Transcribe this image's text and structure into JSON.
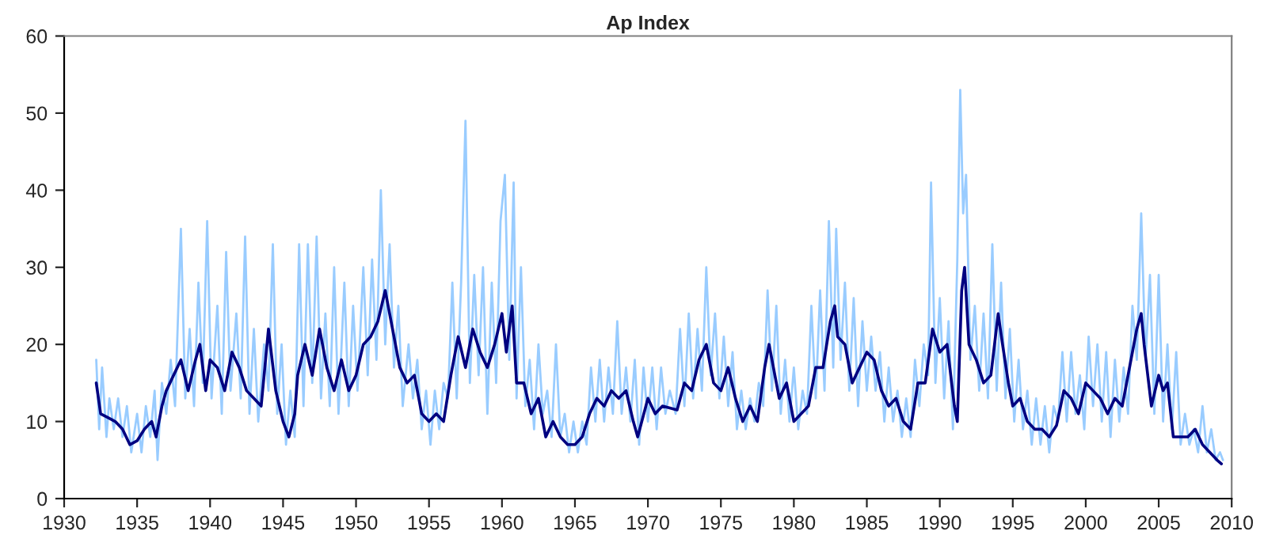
{
  "chart_data": {
    "type": "line",
    "title": "Ap Index",
    "xlim": [
      1930,
      2010
    ],
    "xticks": [
      1930,
      1935,
      1940,
      1945,
      1950,
      1955,
      1960,
      1965,
      1970,
      1975,
      1980,
      1985,
      1990,
      1995,
      2000,
      2005,
      2010
    ],
    "ylim": [
      0,
      60
    ],
    "yticks": [
      0,
      10,
      20,
      30,
      40,
      50,
      60
    ],
    "grid": false,
    "marker": "none",
    "line_style": "solid",
    "series": [
      {
        "color": "#99ccff",
        "x": [
          1932.2,
          1932.4,
          1932.6,
          1932.9,
          1933.1,
          1933.4,
          1933.7,
          1934,
          1934.3,
          1934.6,
          1935,
          1935.3,
          1935.6,
          1935.9,
          1936.2,
          1936.4,
          1936.7,
          1937,
          1937.3,
          1937.6,
          1938,
          1938.3,
          1938.6,
          1938.9,
          1939.2,
          1939.5,
          1939.8,
          1940.1,
          1940.5,
          1940.8,
          1941.1,
          1941.4,
          1941.8,
          1942.1,
          1942.4,
          1942.7,
          1943,
          1943.3,
          1943.7,
          1944,
          1944.3,
          1944.6,
          1944.9,
          1945.2,
          1945.5,
          1945.8,
          1946.1,
          1946.4,
          1946.7,
          1947,
          1947.3,
          1947.6,
          1947.9,
          1948.2,
          1948.5,
          1948.8,
          1949.2,
          1949.5,
          1949.8,
          1950.1,
          1950.5,
          1950.8,
          1951.1,
          1951.4,
          1951.7,
          1952,
          1952.3,
          1952.6,
          1952.9,
          1953.2,
          1953.6,
          1953.9,
          1954.2,
          1954.5,
          1954.8,
          1955.1,
          1955.4,
          1955.7,
          1956,
          1956.3,
          1956.6,
          1956.9,
          1957.2,
          1957.5,
          1957.8,
          1958.1,
          1958.4,
          1958.7,
          1959,
          1959.3,
          1959.6,
          1959.9,
          1960.2,
          1960.5,
          1960.8,
          1961,
          1961.3,
          1961.6,
          1961.9,
          1962.2,
          1962.5,
          1962.8,
          1963.1,
          1963.4,
          1963.7,
          1964,
          1964.3,
          1964.6,
          1964.9,
          1965.2,
          1965.5,
          1965.8,
          1966.1,
          1966.4,
          1966.7,
          1967,
          1967.3,
          1967.6,
          1967.9,
          1968.2,
          1968.5,
          1968.8,
          1969.1,
          1969.4,
          1969.7,
          1970,
          1970.3,
          1970.6,
          1970.9,
          1971.2,
          1971.5,
          1971.9,
          1972.2,
          1972.5,
          1972.8,
          1973.1,
          1973.4,
          1973.7,
          1974,
          1974.3,
          1974.6,
          1974.9,
          1975.2,
          1975.5,
          1975.8,
          1976.1,
          1976.4,
          1976.7,
          1977,
          1977.3,
          1977.6,
          1977.9,
          1978.2,
          1978.5,
          1978.8,
          1979.1,
          1979.4,
          1979.7,
          1980,
          1980.3,
          1980.6,
          1980.9,
          1981.2,
          1981.5,
          1981.8,
          1982.1,
          1982.4,
          1982.7,
          1982.9,
          1983.2,
          1983.5,
          1983.8,
          1984.1,
          1984.4,
          1984.7,
          1985,
          1985.3,
          1985.6,
          1985.9,
          1986.2,
          1986.5,
          1986.8,
          1987.1,
          1987.4,
          1987.7,
          1988,
          1988.3,
          1988.6,
          1988.9,
          1989.2,
          1989.4,
          1989.7,
          1990,
          1990.3,
          1990.6,
          1990.9,
          1991.2,
          1991.4,
          1991.6,
          1991.8,
          1992.1,
          1992.4,
          1992.7,
          1993,
          1993.3,
          1993.6,
          1993.9,
          1994.2,
          1994.5,
          1994.8,
          1995.1,
          1995.4,
          1995.7,
          1996,
          1996.3,
          1996.6,
          1996.9,
          1997.2,
          1997.5,
          1997.8,
          1998.1,
          1998.4,
          1998.7,
          1999,
          1999.3,
          1999.6,
          1999.9,
          2000.2,
          2000.5,
          2000.8,
          2001.1,
          2001.4,
          2001.7,
          2002,
          2002.3,
          2002.6,
          2002.9,
          2003.2,
          2003.5,
          2003.8,
          2004.1,
          2004.4,
          2004.7,
          2005,
          2005.3,
          2005.6,
          2005.9,
          2006.2,
          2006.5,
          2006.8,
          2007.1,
          2007.4,
          2007.7,
          2008,
          2008.3,
          2008.6,
          2008.9,
          2009.2,
          2009.4
        ],
        "values": [
          18,
          9,
          17,
          8,
          13,
          9,
          13,
          8,
          12,
          6,
          11,
          6,
          12,
          8,
          14,
          5,
          15,
          11,
          18,
          12,
          35,
          13,
          22,
          12,
          28,
          15,
          36,
          13,
          25,
          11,
          32,
          14,
          24,
          13,
          34,
          11,
          22,
          10,
          20,
          14,
          33,
          11,
          20,
          7,
          14,
          8,
          33,
          12,
          33,
          15,
          34,
          13,
          24,
          12,
          30,
          11,
          28,
          12,
          25,
          14,
          30,
          16,
          31,
          18,
          40,
          20,
          33,
          17,
          25,
          12,
          20,
          13,
          18,
          9,
          14,
          7,
          14,
          9,
          15,
          13,
          28,
          13,
          28,
          49,
          15,
          29,
          16,
          30,
          11,
          28,
          15,
          36,
          42,
          18,
          41,
          13,
          30,
          12,
          18,
          9,
          20,
          11,
          14,
          8,
          20,
          8,
          11,
          6,
          10,
          6,
          10,
          7,
          17,
          10,
          18,
          10,
          17,
          11,
          23,
          11,
          17,
          10,
          18,
          7,
          17,
          10,
          17,
          9,
          17,
          11,
          14,
          11,
          22,
          12,
          24,
          13,
          22,
          14,
          30,
          16,
          24,
          13,
          21,
          12,
          19,
          9,
          14,
          9,
          13,
          10,
          15,
          12,
          27,
          14,
          25,
          11,
          18,
          10,
          17,
          9,
          14,
          11,
          25,
          13,
          27,
          14,
          36,
          17,
          35,
          18,
          28,
          14,
          26,
          12,
          23,
          14,
          21,
          14,
          19,
          10,
          17,
          10,
          14,
          8,
          13,
          8,
          18,
          12,
          20,
          16,
          41,
          15,
          26,
          13,
          23,
          9,
          31,
          53,
          37,
          42,
          18,
          25,
          14,
          24,
          13,
          33,
          14,
          28,
          13,
          22,
          10,
          18,
          9,
          14,
          7,
          13,
          7,
          12,
          6,
          12,
          10,
          19,
          10,
          19,
          11,
          16,
          9,
          21,
          12,
          20,
          10,
          19,
          8,
          18,
          10,
          17,
          11,
          25,
          18,
          37,
          18,
          29,
          11,
          29,
          10,
          20,
          9,
          19,
          7,
          11,
          7,
          9,
          6,
          12,
          6,
          9,
          5,
          6,
          5
        ]
      },
      {
        "color": "#000080",
        "x": [
          1932.2,
          1932.5,
          1933,
          1933.5,
          1934,
          1934.5,
          1935,
          1935.5,
          1936,
          1936.3,
          1936.7,
          1937,
          1937.5,
          1938,
          1938.5,
          1939,
          1939.3,
          1939.7,
          1940,
          1940.5,
          1941,
          1941.5,
          1942,
          1942.5,
          1943,
          1943.5,
          1944,
          1944.5,
          1945,
          1945.4,
          1945.8,
          1946,
          1946.5,
          1947,
          1947.5,
          1948,
          1948.5,
          1949,
          1949.5,
          1950,
          1950.5,
          1951,
          1951.5,
          1952,
          1952.5,
          1953,
          1953.5,
          1954,
          1954.5,
          1955,
          1955.5,
          1956,
          1956.5,
          1957,
          1957.5,
          1958,
          1958.5,
          1959,
          1959.5,
          1960,
          1960.3,
          1960.7,
          1961,
          1961.5,
          1962,
          1962.5,
          1963,
          1963.5,
          1964,
          1964.5,
          1965,
          1965.5,
          1966,
          1966.5,
          1967,
          1967.5,
          1968,
          1968.5,
          1969,
          1969.3,
          1970,
          1970.5,
          1971,
          1972,
          1972.5,
          1973,
          1973.5,
          1974,
          1974.5,
          1975,
          1975.5,
          1976,
          1976.5,
          1977,
          1977.5,
          1978,
          1978.3,
          1978.7,
          1979,
          1979.5,
          1980,
          1980.5,
          1981,
          1981.5,
          1982,
          1982.5,
          1982.8,
          1983,
          1983.5,
          1984,
          1984.5,
          1985,
          1985.5,
          1986,
          1986.5,
          1987,
          1987.5,
          1988,
          1988.5,
          1989,
          1989.5,
          1990,
          1990.5,
          1991,
          1991.2,
          1991.5,
          1991.7,
          1992,
          1992.5,
          1993,
          1993.5,
          1994,
          1994.3,
          1994.7,
          1995,
          1995.5,
          1996,
          1996.5,
          1997,
          1997.5,
          1998,
          1998.5,
          1999,
          1999.5,
          2000,
          2000.5,
          2001,
          2001.5,
          2002,
          2002.5,
          2003,
          2003.5,
          2003.8,
          2004,
          2004.5,
          2005,
          2005.3,
          2005.6,
          2006,
          2006.5,
          2007,
          2007.5,
          2008,
          2008.5,
          2009,
          2009.3
        ],
        "values": [
          15,
          11,
          10.5,
          10,
          9,
          7,
          7.5,
          9,
          10,
          8,
          12,
          14,
          16,
          18,
          14,
          18,
          20,
          14,
          18,
          17,
          14,
          19,
          17,
          14,
          13,
          12,
          22,
          14,
          10,
          8,
          11,
          16,
          20,
          16,
          22,
          17,
          14,
          18,
          14,
          16,
          20,
          21,
          23,
          27,
          22,
          17,
          15,
          16,
          11,
          10,
          11,
          10,
          16,
          21,
          17,
          22,
          19,
          17,
          20,
          24,
          19,
          25,
          15,
          15,
          11,
          13,
          8,
          10,
          8,
          7,
          7,
          8,
          11,
          13,
          12,
          14,
          13,
          14,
          10,
          8,
          13,
          11,
          12,
          11.5,
          15,
          14,
          18,
          20,
          15,
          14,
          17,
          13,
          10,
          12,
          10,
          17,
          20,
          16,
          13,
          15,
          10,
          11,
          12,
          17,
          17,
          23,
          25,
          21,
          20,
          15,
          17,
          19,
          18,
          14,
          12,
          13,
          10,
          9,
          15,
          15,
          22,
          19,
          20,
          12,
          10,
          27,
          30,
          20,
          18,
          15,
          16,
          24,
          20,
          15,
          12,
          13,
          10,
          9,
          9,
          8,
          9.5,
          14,
          13,
          11,
          15,
          14,
          13,
          11,
          13,
          12,
          17,
          22,
          24,
          20,
          12,
          16,
          14,
          15,
          8,
          8,
          8,
          9,
          7,
          6,
          5,
          4.5
        ]
      }
    ]
  }
}
